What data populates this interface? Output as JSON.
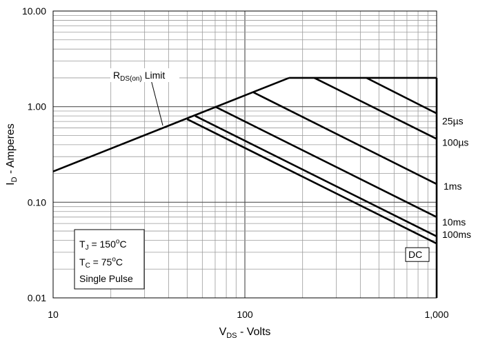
{
  "chart_data": {
    "type": "line",
    "title": "",
    "x_scale": "log",
    "y_scale": "log",
    "xlim": [
      10,
      1000
    ],
    "ylim": [
      0.01,
      10
    ],
    "grid": true,
    "x_ticks": [
      {
        "value": 10,
        "label": "10"
      },
      {
        "value": 100,
        "label": "100"
      },
      {
        "value": 1000,
        "label": "1,000"
      }
    ],
    "y_ticks": [
      {
        "value": 0.01,
        "label": "0.01"
      },
      {
        "value": 0.1,
        "label": "0.10"
      },
      {
        "value": 1,
        "label": "1.00"
      },
      {
        "value": 10,
        "label": "10.00"
      }
    ],
    "xlabel": {
      "main": "V",
      "sub": "DS",
      "rest": " - Volts"
    },
    "ylabel": {
      "main": "I",
      "sub": "D",
      "rest": " - Amperes"
    },
    "limit_line": {
      "label": {
        "main": "R",
        "sub": "DS(on)",
        "rest": " Limit"
      },
      "points": [
        [
          10,
          0.21
        ],
        [
          170,
          2.0
        ]
      ]
    },
    "current_limit": {
      "points": [
        [
          170,
          2.0
        ],
        [
          1000,
          2.0
        ]
      ]
    },
    "voltage_limit": {
      "points": [
        [
          1000,
          2.0
        ],
        [
          1000,
          0.01
        ]
      ]
    },
    "series": [
      {
        "name": "25µs",
        "points": [
          [
            430,
            2.0
          ],
          [
            1000,
            0.85
          ]
        ]
      },
      {
        "name": "100µs",
        "points": [
          [
            230,
            2.0
          ],
          [
            1000,
            0.46
          ]
        ]
      },
      {
        "name": "1ms",
        "points": [
          [
            110,
            1.42
          ],
          [
            1000,
            0.155
          ]
        ]
      },
      {
        "name": "10ms",
        "points": [
          [
            70,
            1.0
          ],
          [
            1000,
            0.07
          ]
        ]
      },
      {
        "name": "100ms",
        "points": [
          [
            55,
            0.8
          ],
          [
            1000,
            0.044
          ]
        ]
      },
      {
        "name": "DC",
        "points": [
          [
            50,
            0.74
          ],
          [
            1000,
            0.037
          ]
        ]
      }
    ],
    "conditions": {
      "tj": {
        "main": "T",
        "sub": "J",
        "rest": " = 150",
        "sup": "o",
        "unit": "C"
      },
      "tc": {
        "main": "T",
        "sub": "C",
        "rest": " = 75",
        "sup": "o",
        "unit": "C"
      },
      "pulse": "Single Pulse"
    }
  }
}
